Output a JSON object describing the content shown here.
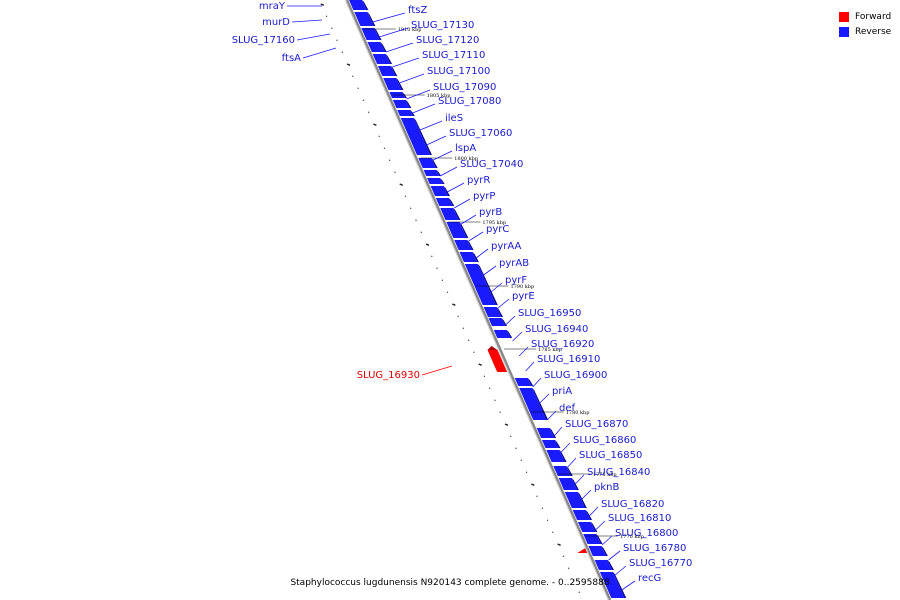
{
  "colors": {
    "forward": "#ff0000",
    "reverse": "#1a1aff",
    "forward_label": "#dd0000",
    "reverse_label": "#1a1acc",
    "backbone": "#888888"
  },
  "legend": [
    {
      "label": "Forward",
      "color": "#ff0000"
    },
    {
      "label": "Reverse",
      "color": "#1a1aff"
    }
  ],
  "caption": "Staphylococcus lugdunensis N920143 complete genome. - 0..2595888",
  "scale_labels": [
    "1810 kbp",
    "1805 kbp",
    "1800 kbp",
    "1795 kbp",
    "1790 kbp",
    "1785 kbp",
    "1780 kbp",
    "1775 kbp",
    "1770 kbp"
  ],
  "reverse_genes": [
    "ftsZ",
    "SLUG_17130",
    "SLUG_17120",
    "SLUG_17110",
    "SLUG_17100",
    "SLUG_17090",
    "SLUG_17080",
    "ileS",
    "SLUG_17060",
    "lspA",
    "SLUG_17040",
    "pyrR",
    "pyrP",
    "pyrB",
    "pyrC",
    "pyrAA",
    "pyrAB",
    "pyrF",
    "pyrE",
    "SLUG_16950",
    "SLUG_16940",
    "SLUG_16920",
    "SLUG_16910",
    "SLUG_16900",
    "priA",
    "def",
    "SLUG_16870",
    "SLUG_16860",
    "SLUG_16850",
    "SLUG_16840",
    "pknB",
    "SLUG_16820",
    "SLUG_16810",
    "SLUG_16800",
    "SLUG_16780",
    "SLUG_16770",
    "recG"
  ],
  "forward_genes": [
    "mraY",
    "murD",
    "SLUG_17160",
    "ftsA",
    "SLUG_16930"
  ]
}
